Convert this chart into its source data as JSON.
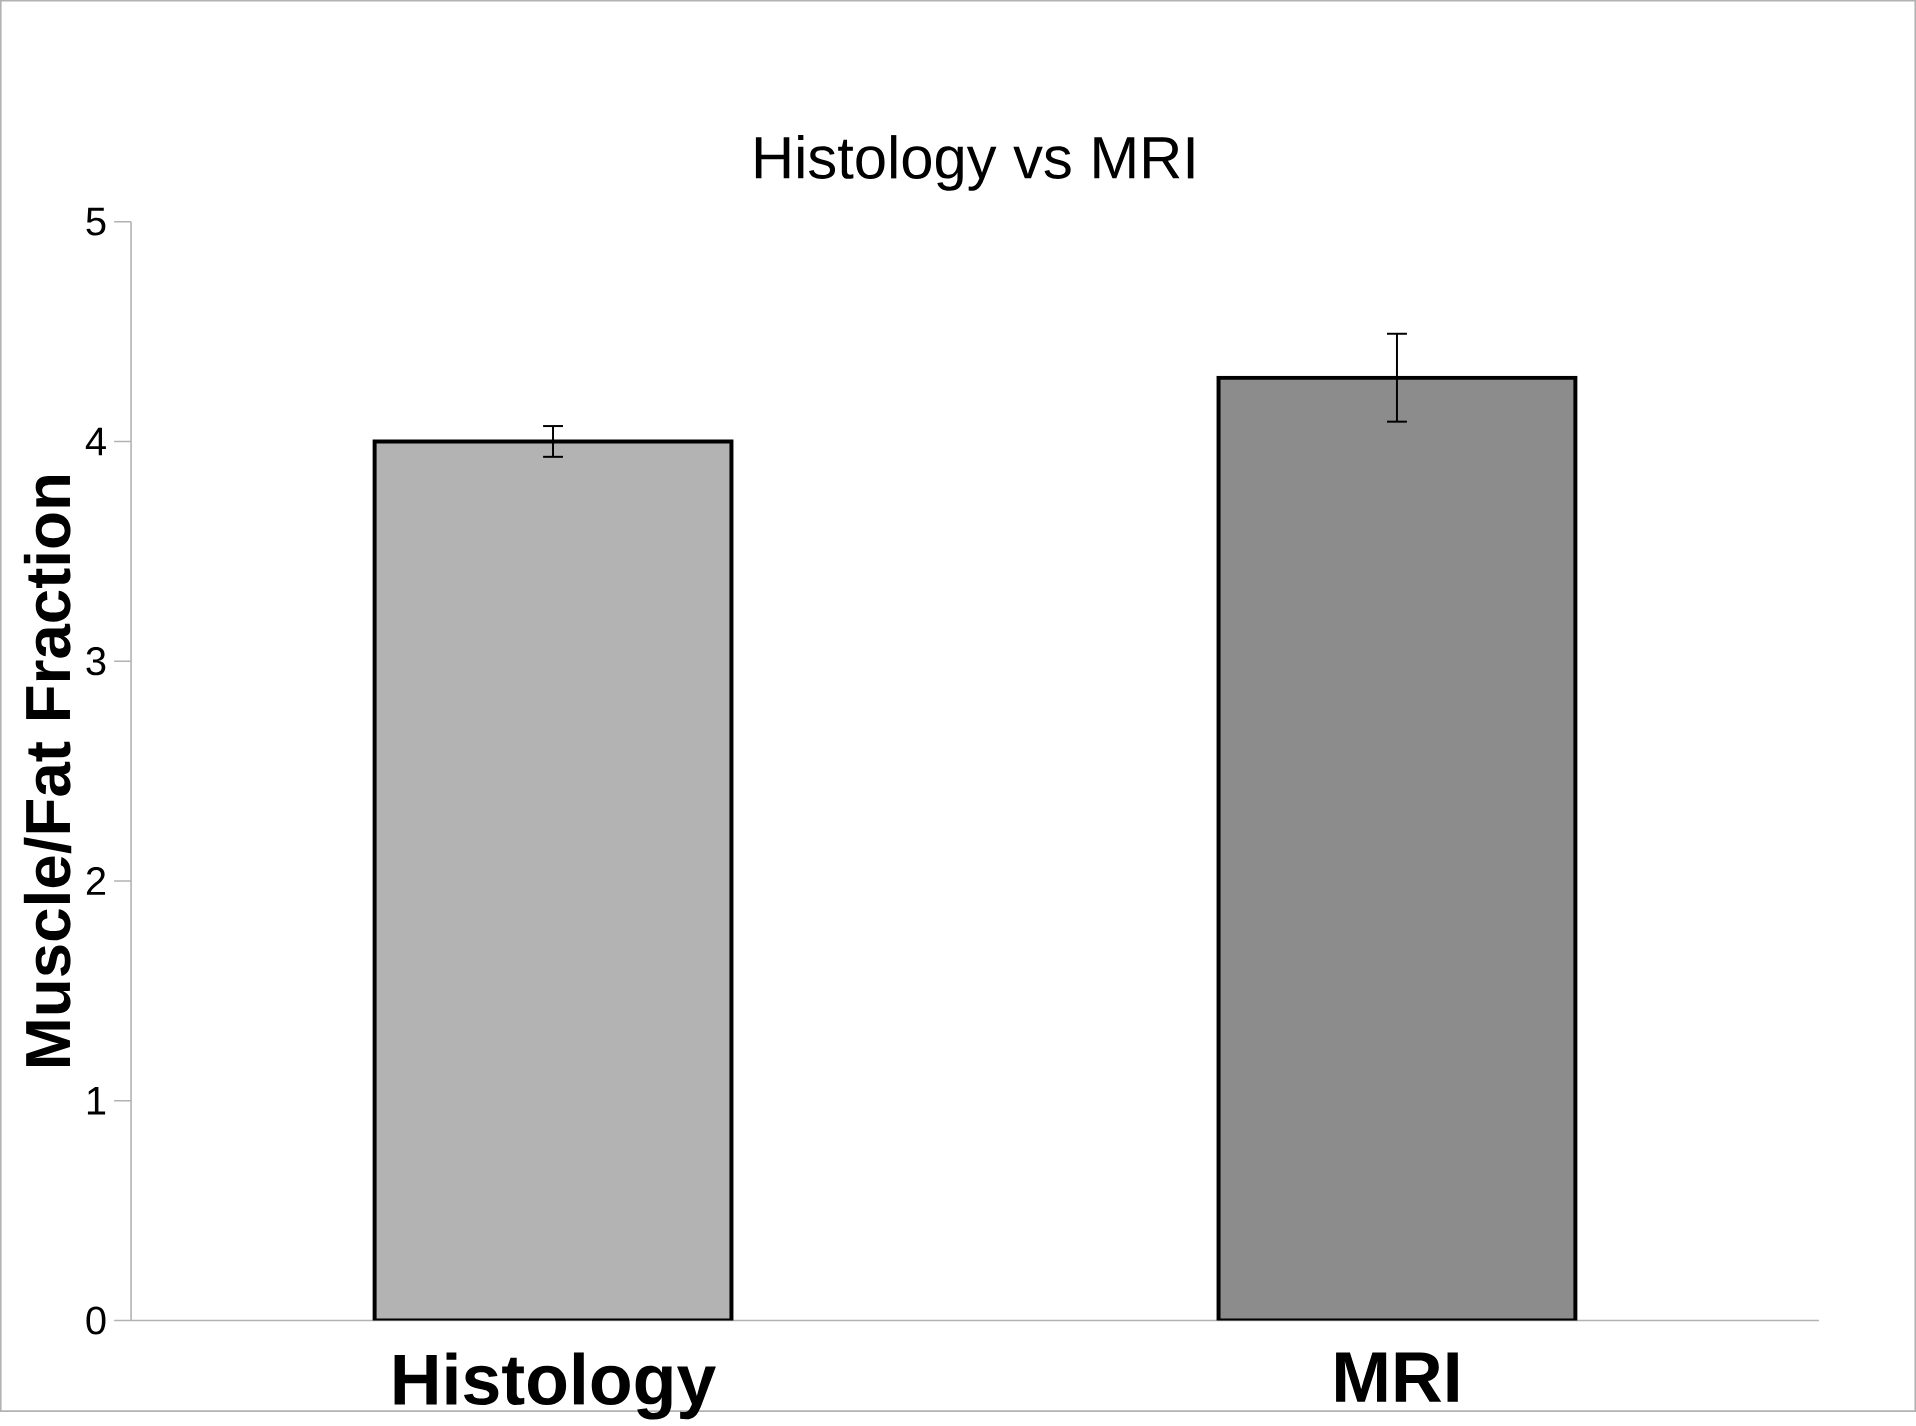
{
  "chart_data": {
    "type": "bar",
    "title": "Histology vs MRI",
    "ylabel": "Muscle/Fat Fraction",
    "categories": [
      "Histology",
      "MRI"
    ],
    "values": [
      4.0,
      4.29
    ],
    "errors": [
      0.07,
      0.2
    ],
    "colors": [
      "#b3b3b3",
      "#8c8c8c"
    ],
    "ylim": [
      0,
      5
    ],
    "yticks": [
      0,
      1,
      2,
      3,
      4,
      5
    ]
  }
}
